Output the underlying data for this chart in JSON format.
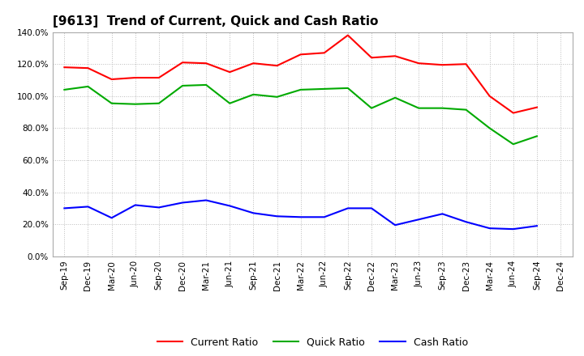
{
  "title": "[9613]  Trend of Current, Quick and Cash Ratio",
  "x_labels": [
    "Sep-19",
    "Dec-19",
    "Mar-20",
    "Jun-20",
    "Sep-20",
    "Dec-20",
    "Mar-21",
    "Jun-21",
    "Sep-21",
    "Dec-21",
    "Mar-22",
    "Jun-22",
    "Sep-22",
    "Dec-22",
    "Mar-23",
    "Jun-23",
    "Sep-23",
    "Dec-23",
    "Mar-24",
    "Jun-24",
    "Sep-24",
    "Dec-24"
  ],
  "current_ratio": [
    118.0,
    117.5,
    110.5,
    111.5,
    111.5,
    121.0,
    120.5,
    115.0,
    120.5,
    119.0,
    126.0,
    127.0,
    138.0,
    124.0,
    125.0,
    120.5,
    119.5,
    120.0,
    100.0,
    89.5,
    93.0,
    null
  ],
  "quick_ratio": [
    104.0,
    106.0,
    95.5,
    95.0,
    95.5,
    106.5,
    107.0,
    95.5,
    101.0,
    99.5,
    104.0,
    104.5,
    105.0,
    92.5,
    99.0,
    92.5,
    92.5,
    91.5,
    80.0,
    70.0,
    75.0,
    null
  ],
  "cash_ratio": [
    30.0,
    31.0,
    24.0,
    32.0,
    30.5,
    33.5,
    35.0,
    31.5,
    27.0,
    25.0,
    24.5,
    24.5,
    30.0,
    30.0,
    19.5,
    23.0,
    26.5,
    21.5,
    17.5,
    17.0,
    19.0,
    null
  ],
  "current_color": "#FF0000",
  "quick_color": "#00AA00",
  "cash_color": "#0000FF",
  "line_width": 1.5,
  "ylim": [
    0,
    140
  ],
  "yticks": [
    0,
    20,
    40,
    60,
    80,
    100,
    120,
    140
  ],
  "background_color": "#FFFFFF",
  "plot_bg_color": "#FFFFFF",
  "grid_color": "#BBBBBB",
  "title_fontsize": 11,
  "legend_fontsize": 9,
  "tick_fontsize": 7.5
}
